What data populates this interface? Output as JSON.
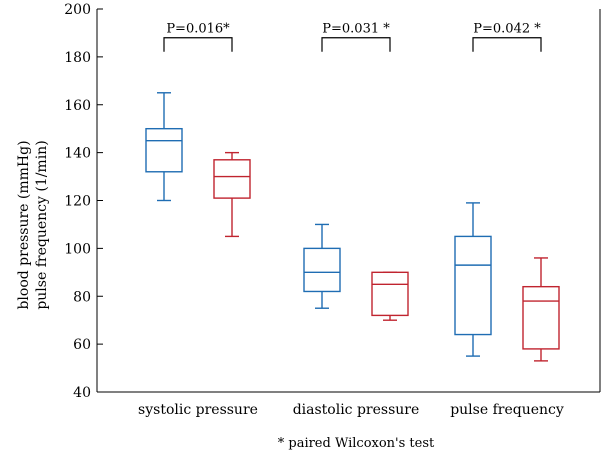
{
  "chart_data": {
    "type": "box",
    "ylabel_lines": [
      "blood pressure (mmHg)",
      "pulse frequency (1/min)"
    ],
    "ylim": [
      40,
      200
    ],
    "y_ticks": [
      40,
      60,
      80,
      100,
      120,
      140,
      160,
      180,
      200
    ],
    "categories": [
      "systolic pressure",
      "diastolic pressure",
      "pulse frequency"
    ],
    "series_colors": [
      "#1f6db3",
      "#c0242f"
    ],
    "boxes": [
      [
        {
          "min": 120,
          "q1": 132,
          "median": 145,
          "q3": 150,
          "max": 165
        },
        {
          "min": 105,
          "q1": 121,
          "median": 130,
          "q3": 137,
          "max": 140
        }
      ],
      [
        {
          "min": 75,
          "q1": 82,
          "median": 90,
          "q3": 100,
          "max": 110
        },
        {
          "min": 70,
          "q1": 72,
          "median": 85,
          "q3": 90,
          "max": 90
        }
      ],
      [
        {
          "min": 55,
          "q1": 64,
          "median": 93,
          "q3": 105,
          "max": 119
        },
        {
          "min": 53,
          "q1": 58,
          "median": 78,
          "q3": 84,
          "max": 96
        }
      ]
    ],
    "annotations": [
      "P=0.016*",
      "P=0.031 *",
      "P=0.042 *"
    ],
    "bracket_y": 188,
    "footnote": "* paired Wilcoxon's  test"
  }
}
